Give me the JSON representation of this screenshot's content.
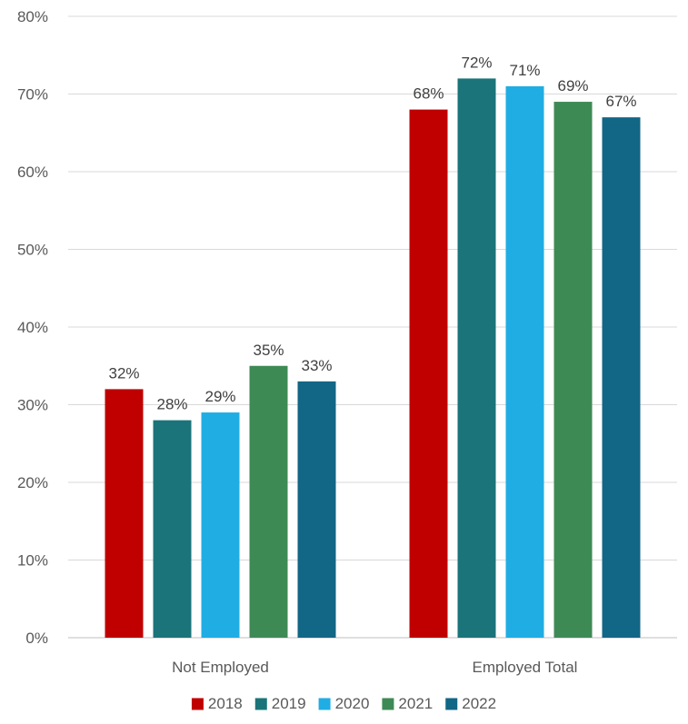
{
  "chart_data": {
    "type": "bar",
    "categories": [
      "Not Employed",
      "Employed Total"
    ],
    "series": [
      {
        "name": "2018",
        "color": "#c00000",
        "values": [
          32,
          68
        ]
      },
      {
        "name": "2019",
        "color": "#1a7479",
        "values": [
          28,
          72
        ]
      },
      {
        "name": "2020",
        "color": "#20ade3",
        "values": [
          29,
          71
        ]
      },
      {
        "name": "2021",
        "color": "#3e8a55",
        "values": [
          35,
          69
        ]
      },
      {
        "name": "2022",
        "color": "#126686",
        "values": [
          33,
          67
        ]
      }
    ],
    "data_labels": [
      [
        "32%",
        "68%"
      ],
      [
        "28%",
        "72%"
      ],
      [
        "29%",
        "71%"
      ],
      [
        "35%",
        "69%"
      ],
      [
        "33%",
        "67%"
      ]
    ],
    "y_ticks": [
      0,
      10,
      20,
      30,
      40,
      50,
      60,
      70,
      80
    ],
    "y_tick_labels": [
      "0%",
      "10%",
      "20%",
      "30%",
      "40%",
      "50%",
      "60%",
      "70%",
      "80%"
    ],
    "ylim": [
      0,
      80
    ],
    "title": "",
    "xlabel": "",
    "ylabel": "",
    "grid": true,
    "legend_position": "bottom"
  }
}
